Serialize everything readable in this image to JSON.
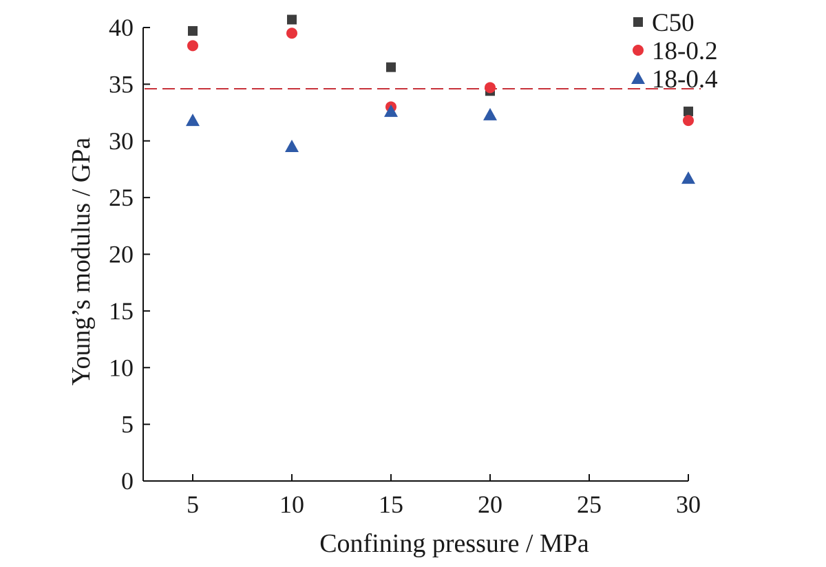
{
  "chart_data": {
    "type": "scatter",
    "title": "",
    "xlabel": "Confining pressure / MPa",
    "ylabel": "Young’s modulus / GPa",
    "xlim": [
      2.5,
      30
    ],
    "ylim": [
      0,
      40
    ],
    "xticks": [
      5,
      10,
      15,
      20,
      25,
      30
    ],
    "yticks": [
      0,
      5,
      10,
      15,
      20,
      25,
      30,
      35,
      40
    ],
    "grid": false,
    "legend_position": "top-right",
    "reference_line": {
      "y": 34.6,
      "style": "dashed",
      "color": "#c8323a"
    },
    "series": [
      {
        "name": "C50",
        "marker": "square",
        "color": "#3d3d3d",
        "points": [
          {
            "x": 5,
            "y": 39.7
          },
          {
            "x": 10,
            "y": 40.7
          },
          {
            "x": 15,
            "y": 36.5
          },
          {
            "x": 20,
            "y": 34.4
          },
          {
            "x": 30,
            "y": 32.6
          }
        ]
      },
      {
        "name": "18-0.2",
        "marker": "circle",
        "color": "#e8343c",
        "points": [
          {
            "x": 5,
            "y": 38.4
          },
          {
            "x": 10,
            "y": 39.5
          },
          {
            "x": 15,
            "y": 33.0
          },
          {
            "x": 20,
            "y": 34.7
          },
          {
            "x": 30,
            "y": 31.8
          }
        ]
      },
      {
        "name": "18-0.4",
        "marker": "triangle",
        "color": "#2e5aa8",
        "points": [
          {
            "x": 5,
            "y": 31.8
          },
          {
            "x": 10,
            "y": 29.5
          },
          {
            "x": 15,
            "y": 32.6
          },
          {
            "x": 20,
            "y": 32.3
          },
          {
            "x": 30,
            "y": 26.7
          }
        ]
      }
    ]
  }
}
